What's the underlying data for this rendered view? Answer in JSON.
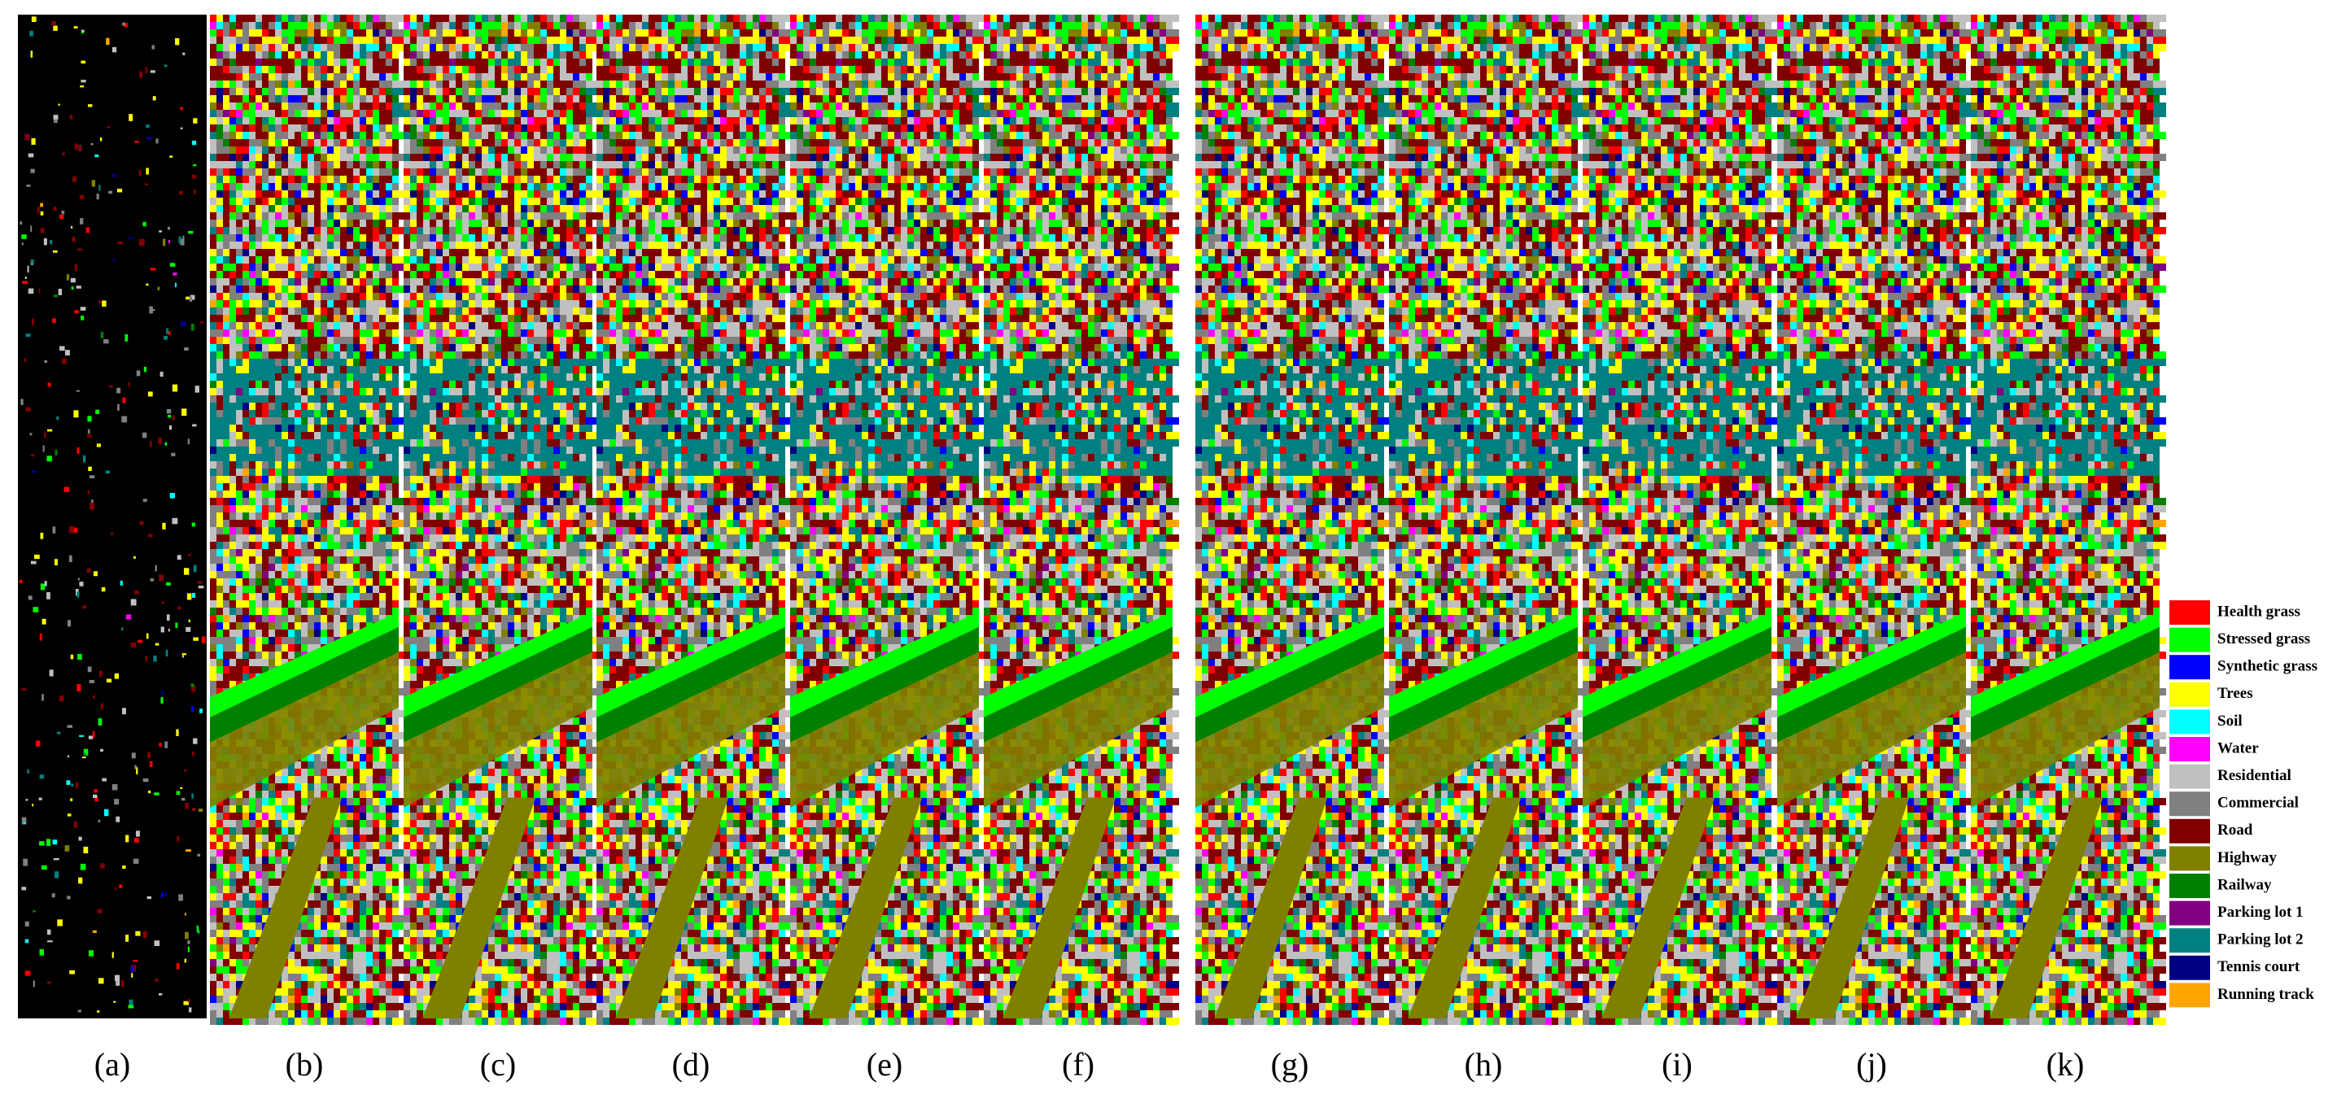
{
  "panels": [
    {
      "label": "(a)"
    },
    {
      "label": "(b)"
    },
    {
      "label": "(c)"
    },
    {
      "label": "(d)"
    },
    {
      "label": "(e)"
    },
    {
      "label": "(f)"
    },
    {
      "label": "(g)"
    },
    {
      "label": "(h)"
    },
    {
      "label": "(i)"
    },
    {
      "label": "(j)"
    },
    {
      "label": "(k)"
    }
  ],
  "legend": [
    {
      "name": "Health grass",
      "color": "#ff0000"
    },
    {
      "name": "Stressed grass",
      "color": "#00ff00"
    },
    {
      "name": "Synthetic grass",
      "color": "#0000ff"
    },
    {
      "name": "Trees",
      "color": "#ffff00"
    },
    {
      "name": "Soil",
      "color": "#00ffff"
    },
    {
      "name": "Water",
      "color": "#ff00ff"
    },
    {
      "name": "Residential",
      "color": "#c0c0c0"
    },
    {
      "name": "Commercial",
      "color": "#808080"
    },
    {
      "name": "Road",
      "color": "#800000"
    },
    {
      "name": "Highway",
      "color": "#808000"
    },
    {
      "name": "Railway",
      "color": "#008000"
    },
    {
      "name": "Parking lot 1",
      "color": "#800080"
    },
    {
      "name": "Parking lot 2",
      "color": "#008080"
    },
    {
      "name": "Tennis court",
      "color": "#000080"
    },
    {
      "name": "Running track",
      "color": "#ffa500"
    }
  ]
}
